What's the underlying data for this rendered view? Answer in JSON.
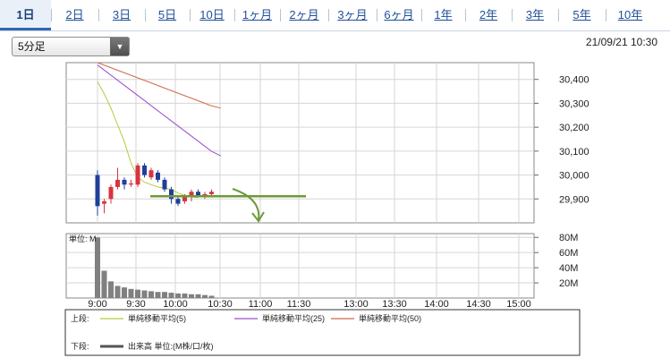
{
  "tabs": [
    {
      "label": "1日",
      "active": true
    },
    {
      "label": "2日"
    },
    {
      "label": "3日"
    },
    {
      "label": "5日"
    },
    {
      "label": "10日"
    },
    {
      "label": "1ヶ月"
    },
    {
      "label": "2ヶ月"
    },
    {
      "label": "3ヶ月"
    },
    {
      "label": "6ヶ月"
    },
    {
      "label": "1年"
    },
    {
      "label": "2年"
    },
    {
      "label": "3年"
    },
    {
      "label": "5年"
    },
    {
      "label": "10年"
    }
  ],
  "interval_select": {
    "value": "5分足"
  },
  "datetime": "21/09/21 10:30",
  "volume_unit_label": "単位: M",
  "legend": {
    "upper_label": "上段:",
    "lower_label": "下段:",
    "ma": [
      {
        "name": "単純移動平均(5)",
        "color": "#b9c93b"
      },
      {
        "name": "単純移動平均(25)",
        "color": "#9a4fd0"
      },
      {
        "name": "単純移動平均(50)",
        "color": "#d2684a"
      }
    ],
    "volume": {
      "name": "出来高 単位:(M株/口/枚)",
      "color": "#555555"
    }
  },
  "colors": {
    "up": "#d9333f",
    "down": "#1f3f9a",
    "annotation": "#6d9a3a",
    "volume": "#808080"
  },
  "chart_data": [
    {
      "type": "candlestick",
      "x_ticks": [
        "9:00",
        "9:30",
        "10:00",
        "10:30",
        "11:00",
        "11:30",
        "13:00",
        "13:30",
        "14:00",
        "14:30",
        "15:00"
      ],
      "y_ticks": [
        "30,400",
        "30,300",
        "30,200",
        "30,100",
        "30,000",
        "29,900"
      ],
      "ylim": [
        29800,
        30470
      ],
      "candles": [
        {
          "o": 30000,
          "h": 30020,
          "l": 29830,
          "c": 29870
        },
        {
          "o": 29880,
          "h": 29900,
          "l": 29840,
          "c": 29890
        },
        {
          "o": 29900,
          "h": 29960,
          "l": 29880,
          "c": 29950
        },
        {
          "o": 29950,
          "h": 30030,
          "l": 29940,
          "c": 29980
        },
        {
          "o": 29980,
          "h": 29990,
          "l": 29940,
          "c": 29960
        },
        {
          "o": 29960,
          "h": 29980,
          "l": 29950,
          "c": 29965
        },
        {
          "o": 29960,
          "h": 30050,
          "l": 29950,
          "c": 30040
        },
        {
          "o": 30040,
          "h": 30050,
          "l": 29990,
          "c": 30000
        },
        {
          "o": 29990,
          "h": 30030,
          "l": 29980,
          "c": 30020
        },
        {
          "o": 30010,
          "h": 30020,
          "l": 29970,
          "c": 29980
        },
        {
          "o": 29980,
          "h": 29990,
          "l": 29930,
          "c": 29940
        },
        {
          "o": 29940,
          "h": 29950,
          "l": 29880,
          "c": 29900
        },
        {
          "o": 29900,
          "h": 29910,
          "l": 29870,
          "c": 29880
        },
        {
          "o": 29890,
          "h": 29920,
          "l": 29880,
          "c": 29910
        },
        {
          "o": 29910,
          "h": 29940,
          "l": 29890,
          "c": 29930
        },
        {
          "o": 29930,
          "h": 29940,
          "l": 29910,
          "c": 29915
        },
        {
          "o": 29915,
          "h": 29930,
          "l": 29900,
          "c": 29920
        },
        {
          "o": 29920,
          "h": 29940,
          "l": 29910,
          "c": 29930
        }
      ],
      "ma5": [
        30390,
        30340,
        30280,
        30210,
        30140,
        30050,
        29990,
        29970,
        29960,
        29950,
        29945,
        29940,
        29925,
        29915,
        29908,
        29906
      ],
      "ma25": [
        30460,
        30430,
        30400,
        30370,
        30340,
        30310,
        30280,
        30250,
        30220,
        30190,
        30160,
        30130,
        30100,
        30080
      ],
      "ma50": [
        30470,
        30455,
        30440,
        30425,
        30410,
        30395,
        30380,
        30365,
        30350,
        30335,
        30320,
        30305,
        30290,
        30280
      ],
      "annotation_line": 29900
    },
    {
      "type": "bar",
      "y_ticks": [
        "80M",
        "60M",
        "40M",
        "20M"
      ],
      "ylim": [
        0,
        85
      ],
      "volume": [
        80,
        36,
        22,
        16,
        14,
        12,
        11,
        10,
        9,
        8,
        8,
        7,
        6,
        6,
        5,
        5,
        4,
        3
      ]
    }
  ]
}
